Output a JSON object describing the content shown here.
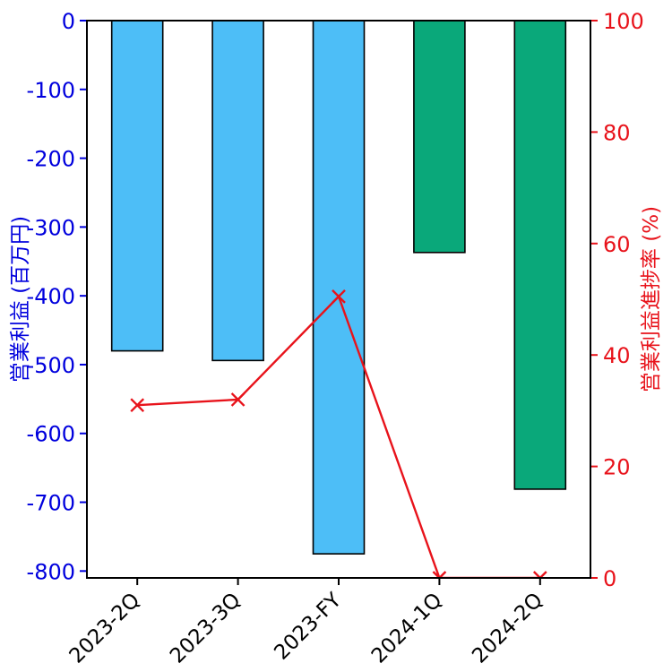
{
  "figure": {
    "background": "#ffffff"
  },
  "chart_data": {
    "type": "bar",
    "title": "",
    "categories": [
      "2023-2Q",
      "2023-3Q",
      "2023-FY",
      "2024-1Q",
      "2024-2Q"
    ],
    "series": [
      {
        "name": "営業利益",
        "type": "bar",
        "axis": "left",
        "values": [
          -480,
          -494,
          -775,
          -337,
          -681
        ],
        "bar_colors": [
          "#4dbef7",
          "#4dbef7",
          "#4dbef7",
          "#0aa87a",
          "#0aa87a"
        ],
        "edge_color": "#000000"
      },
      {
        "name": "営業利益進捗率",
        "type": "line",
        "axis": "right",
        "values": [
          31,
          32,
          50.5,
          0,
          0
        ],
        "color": "#e8131b",
        "marker": "x"
      }
    ],
    "left_axis": {
      "label": "営業利益 (百万円)",
      "color": "#0000dd",
      "ticks": [
        0,
        -100,
        -200,
        -300,
        -400,
        -500,
        -600,
        -700,
        -800
      ],
      "range": [
        -810,
        0
      ]
    },
    "right_axis": {
      "label": "営業利益進捗率 (%)",
      "color": "#e8131b",
      "ticks": [
        0,
        20,
        40,
        60,
        80,
        100
      ],
      "range": [
        0,
        100
      ]
    },
    "x_axis": {
      "color": "#000000",
      "tick_rotation": 45
    },
    "grid": false,
    "legend": false
  }
}
